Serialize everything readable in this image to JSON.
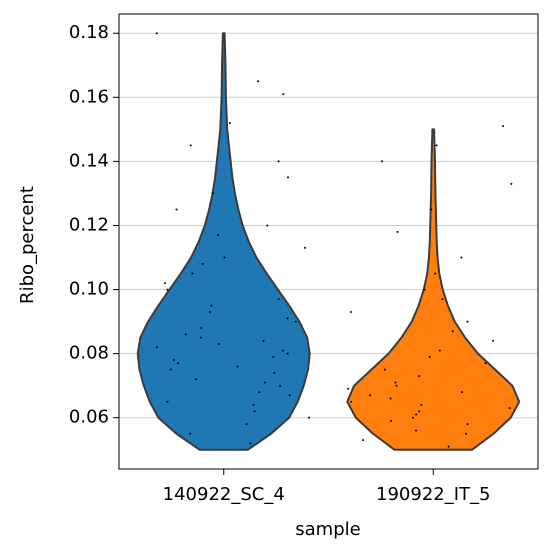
{
  "chart_data": {
    "type": "violin",
    "xlabel": "sample",
    "ylabel": "Ribo_percent",
    "categories": [
      "140922_SC_4",
      "190922_IT_5"
    ],
    "ylim": [
      0.044,
      0.186
    ],
    "yticks": [
      0.06,
      0.08,
      {
        "value": 0.1,
        "label": "0.10"
      },
      0.12,
      0.14,
      0.16,
      0.18
    ],
    "grid": true,
    "series": [
      {
        "color": "#1f77b4",
        "levels": [
          0.05,
          0.055,
          0.06,
          0.065,
          0.07,
          0.075,
          0.08,
          0.085,
          0.09,
          0.095,
          0.1,
          0.105,
          0.11,
          0.115,
          0.12,
          0.125,
          0.13,
          0.135,
          0.14,
          0.145,
          0.15,
          0.16,
          0.17,
          0.18
        ],
        "density": [
          0.28,
          0.55,
          0.76,
          0.86,
          0.93,
          0.98,
          1.0,
          0.97,
          0.88,
          0.76,
          0.63,
          0.5,
          0.38,
          0.29,
          0.22,
          0.17,
          0.13,
          0.1,
          0.08,
          0.06,
          0.04,
          0.025,
          0.02,
          0.01
        ],
        "points": [
          0.052,
          0.055,
          0.058,
          0.06,
          0.062,
          0.064,
          0.065,
          0.067,
          0.068,
          0.07,
          0.071,
          0.072,
          0.074,
          0.075,
          0.076,
          0.077,
          0.078,
          0.079,
          0.08,
          0.081,
          0.082,
          0.083,
          0.084,
          0.085,
          0.086,
          0.088,
          0.09,
          0.091,
          0.093,
          0.095,
          0.097,
          0.1,
          0.102,
          0.105,
          0.108,
          0.11,
          0.113,
          0.117,
          0.12,
          0.125,
          0.13,
          0.135,
          0.14,
          0.145,
          0.152,
          0.161,
          0.165,
          0.18
        ]
      },
      {
        "color": "#ff7f0e",
        "levels": [
          0.05,
          0.055,
          0.06,
          0.065,
          0.07,
          0.075,
          0.08,
          0.085,
          0.09,
          0.095,
          0.1,
          0.105,
          0.11,
          0.115,
          0.12,
          0.125,
          0.13,
          0.14,
          0.15
        ],
        "density": [
          0.45,
          0.7,
          0.9,
          1.0,
          0.92,
          0.72,
          0.52,
          0.37,
          0.25,
          0.17,
          0.11,
          0.07,
          0.05,
          0.04,
          0.035,
          0.03,
          0.025,
          0.02,
          0.01
        ],
        "points": [
          0.051,
          0.053,
          0.055,
          0.056,
          0.058,
          0.059,
          0.06,
          0.061,
          0.062,
          0.063,
          0.064,
          0.065,
          0.066,
          0.067,
          0.068,
          0.069,
          0.07,
          0.071,
          0.073,
          0.075,
          0.077,
          0.079,
          0.081,
          0.084,
          0.087,
          0.09,
          0.093,
          0.097,
          0.1,
          0.105,
          0.11,
          0.118,
          0.125,
          0.133,
          0.14,
          0.145,
          0.151
        ]
      }
    ]
  }
}
